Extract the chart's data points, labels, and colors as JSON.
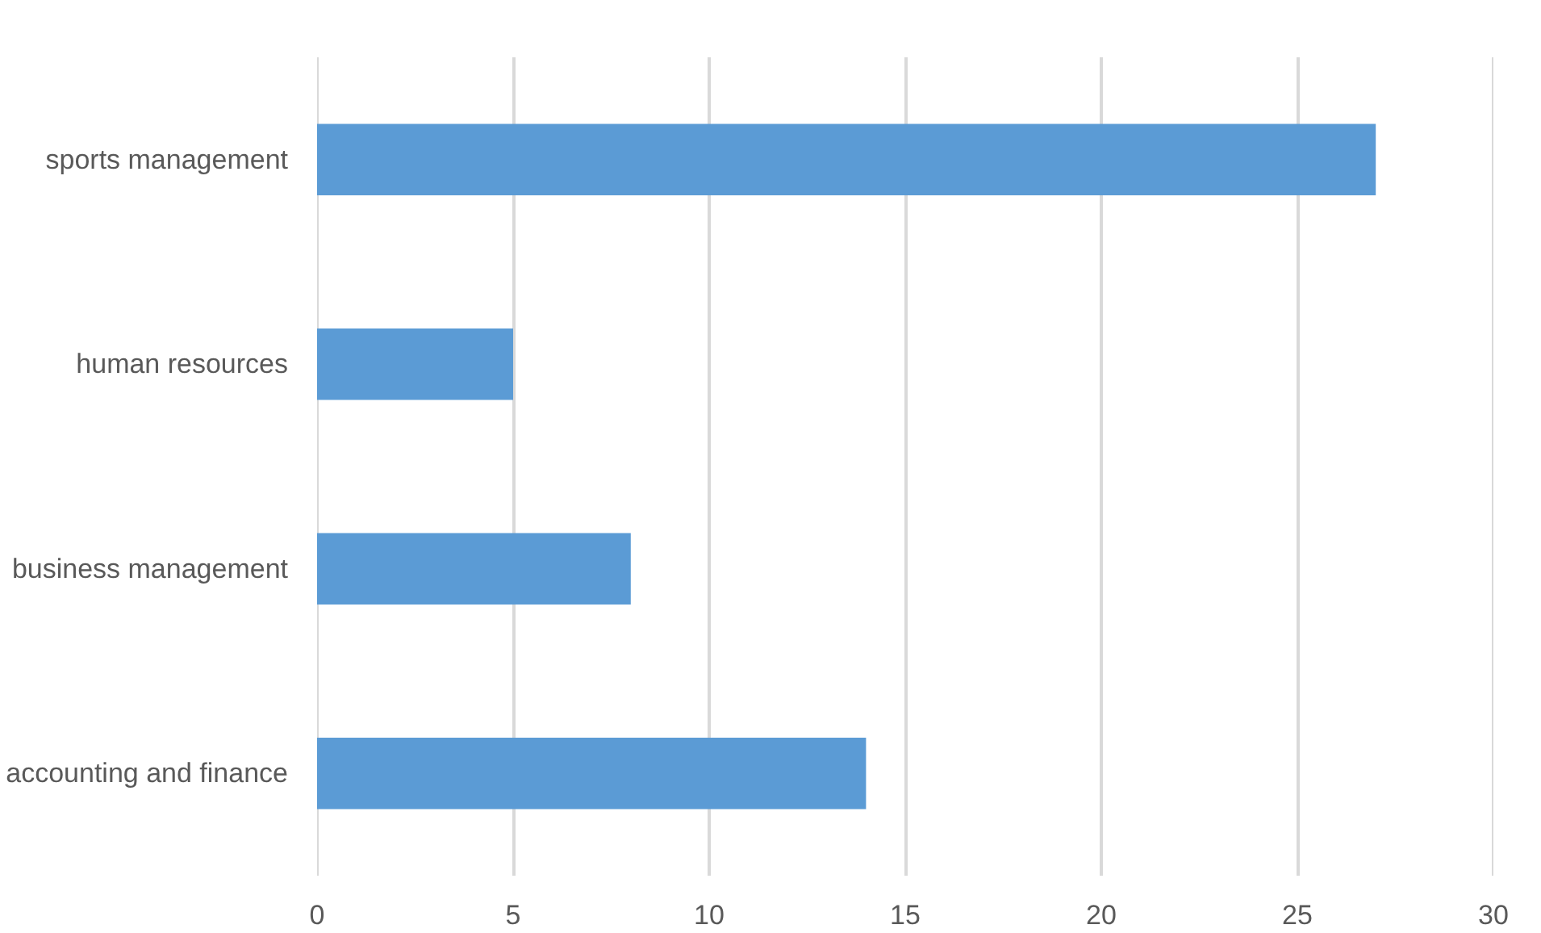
{
  "chart_data": {
    "type": "bar",
    "orientation": "horizontal",
    "categories": [
      "sports management",
      "human resources",
      "business management",
      "accounting and finance"
    ],
    "values": [
      27,
      5,
      8,
      14
    ],
    "color": "#5b9bd5",
    "xlim": [
      0,
      30
    ],
    "xticks": [
      0,
      5,
      10,
      15,
      20,
      25,
      30
    ],
    "grid": "x"
  }
}
